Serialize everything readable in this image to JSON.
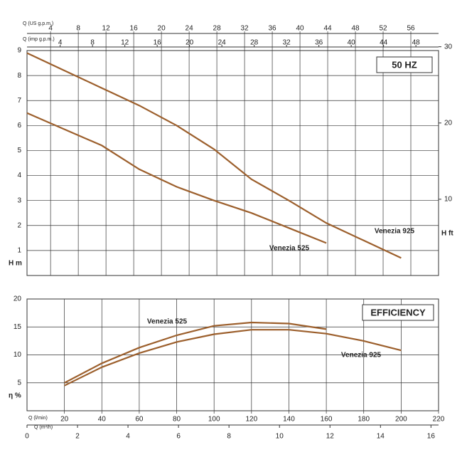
{
  "chart_data": [
    {
      "type": "line",
      "title": "50 HZ",
      "xlim": [
        0,
        220
      ],
      "x": [
        0,
        20,
        40,
        60,
        80,
        100,
        120,
        140,
        160,
        180,
        200
      ],
      "x_us_label": "Q (US g.p.m.)",
      "x_us_lim": [
        0.6,
        60
      ],
      "x_us_ticks": [
        4,
        8,
        12,
        16,
        20,
        24,
        28,
        32,
        36,
        40,
        44,
        48,
        52,
        56
      ],
      "x_imp_label": "Q (imp g.p.m.)",
      "x_imp_lim": [
        -0.1,
        50.8
      ],
      "x_imp_ticks": [
        4,
        8,
        12,
        16,
        20,
        24,
        28,
        32,
        36,
        40,
        44,
        48
      ],
      "ylabel": "H m",
      "ylim": [
        0,
        9
      ],
      "yticks": [
        1,
        2,
        3,
        4,
        5,
        6,
        7,
        8,
        9
      ],
      "y2label": "H ft",
      "y2lim": [
        0,
        29.5
      ],
      "y2ticks": [
        10,
        20,
        30
      ],
      "grid": true,
      "series": [
        {
          "name": "Venezia 925",
          "color": "#9c5f2c",
          "values": [
            8.9,
            8.2,
            7.5,
            6.8,
            6.0,
            5.05,
            3.85,
            3.0,
            2.1,
            1.4,
            0.7
          ]
        },
        {
          "name": "Venezia 525",
          "color": "#9c5f2c",
          "values": [
            6.5,
            5.85,
            5.2,
            4.25,
            3.55,
            3.0,
            2.5,
            1.9,
            1.3,
            null,
            null
          ]
        }
      ]
    },
    {
      "type": "line",
      "title": "EFFICIENCY",
      "xlabel": "Q (l/min)",
      "xlim": [
        0,
        220
      ],
      "xticks": [
        20,
        40,
        60,
        80,
        100,
        120,
        140,
        160,
        180,
        200,
        220
      ],
      "x": [
        20,
        40,
        60,
        80,
        100,
        120,
        140,
        160,
        180,
        200
      ],
      "x2label": "Q (m³/h)",
      "x2lim": [
        0,
        16.3
      ],
      "x2ticks": [
        0,
        2,
        4,
        6,
        8,
        10,
        12,
        14,
        16
      ],
      "ylabel": "η %",
      "ylim": [
        0,
        20
      ],
      "yticks": [
        5,
        10,
        15,
        20
      ],
      "grid": true,
      "series": [
        {
          "name": "Venezia 525",
          "color": "#9c5f2c",
          "values": [
            5.0,
            8.5,
            11.3,
            13.5,
            15.2,
            15.8,
            15.6,
            14.6,
            null,
            null
          ]
        },
        {
          "name": "Venezia 925",
          "color": "#9c5f2c",
          "values": [
            4.5,
            7.8,
            10.3,
            12.3,
            13.7,
            14.5,
            14.5,
            13.8,
            12.5,
            10.8
          ]
        }
      ]
    }
  ]
}
